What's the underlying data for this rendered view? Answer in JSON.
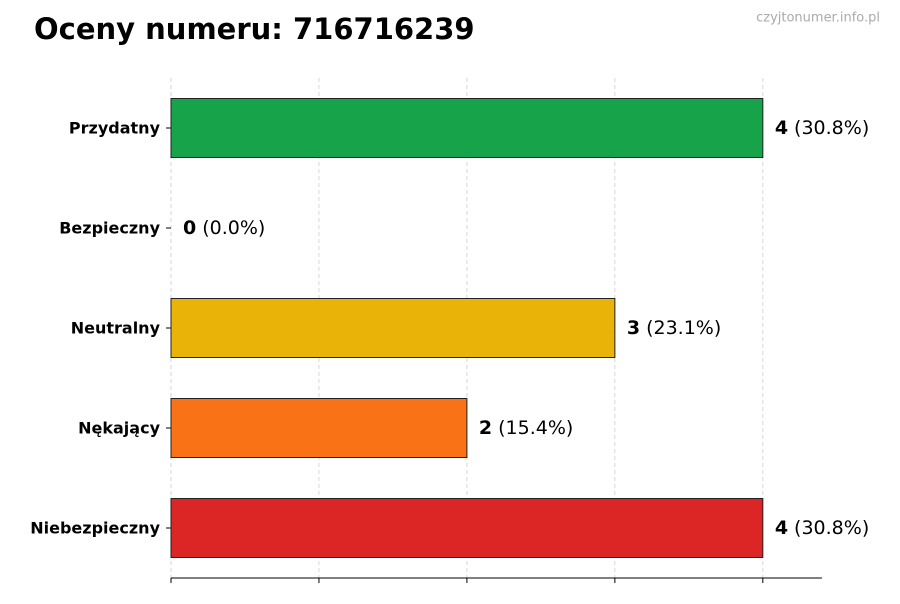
{
  "chart_data": {
    "type": "barh",
    "title": "Oceny numeru: 716716239",
    "watermark": "czyjtonumer.info.pl",
    "categories": [
      "Przydatny",
      "Bezpieczny",
      "Neutralny",
      "Nękający",
      "Niebezpieczny"
    ],
    "values": [
      4,
      0,
      3,
      2,
      4
    ],
    "percent_labels": [
      "(30.8%)",
      "(0.0%)",
      "(23.1%)",
      "(15.4%)",
      "(30.8%)"
    ],
    "colors": [
      "#17a34a",
      "#16a34a",
      "#eab308",
      "#f97316",
      "#dc2626"
    ],
    "xlim": [
      0,
      4.4
    ],
    "xticks": [
      0,
      1,
      2,
      3,
      4
    ],
    "grid": true
  }
}
